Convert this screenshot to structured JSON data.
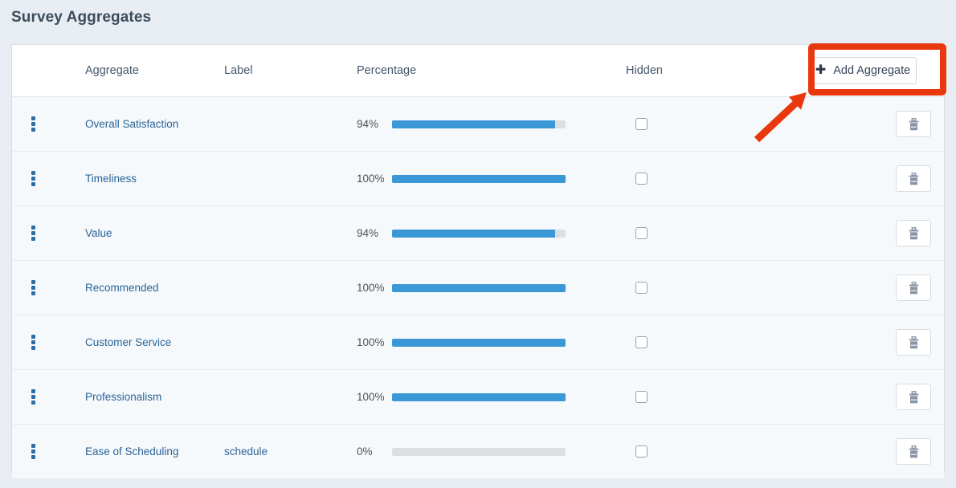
{
  "page": {
    "title": "Survey Aggregates"
  },
  "table": {
    "headers": {
      "aggregate": "Aggregate",
      "label": "Label",
      "percentage": "Percentage",
      "hidden": "Hidden"
    },
    "add_button_label": "Add Aggregate",
    "rows": [
      {
        "aggregate": "Overall Satisfaction",
        "label": "",
        "percentage_text": "94%",
        "percent": 94,
        "hidden_checked": false
      },
      {
        "aggregate": "Timeliness",
        "label": "",
        "percentage_text": "100%",
        "percent": 100,
        "hidden_checked": false
      },
      {
        "aggregate": "Value",
        "label": "",
        "percentage_text": "94%",
        "percent": 94,
        "hidden_checked": false
      },
      {
        "aggregate": "Recommended",
        "label": "",
        "percentage_text": "100%",
        "percent": 100,
        "hidden_checked": false
      },
      {
        "aggregate": "Customer Service",
        "label": "",
        "percentage_text": "100%",
        "percent": 100,
        "hidden_checked": false
      },
      {
        "aggregate": "Professionalism",
        "label": "",
        "percentage_text": "100%",
        "percent": 100,
        "hidden_checked": false
      },
      {
        "aggregate": "Ease of Scheduling",
        "label": "schedule",
        "percentage_text": "0%",
        "percent": 0,
        "hidden_checked": false
      }
    ]
  },
  "annotation": {
    "type": "highlight-rectangle-with-arrow",
    "color": "#ea380e",
    "target": "add-aggregate-button"
  },
  "colors": {
    "bar_fill": "#3b98d6",
    "bar_track": "#dcdfe1",
    "link_blue": "#2a6496",
    "page_background": "#e8edf3",
    "annotation_red": "#ea380e"
  }
}
